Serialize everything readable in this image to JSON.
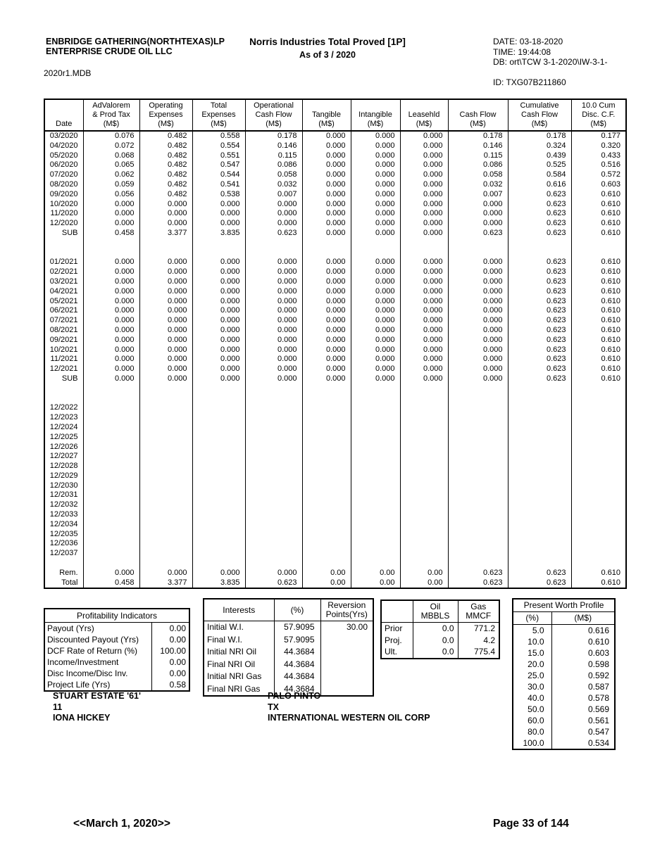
{
  "header": {
    "company_lines": [
      "ENBRIDGE GATHERING(NORTHTEXAS)LP",
      "ENTERPRISE CRUDE OIL LLC"
    ],
    "db_file": "2020r1.MDB",
    "title": "Norris Industries Total Proved [1P]",
    "subtitle": "As of 3 / 2020",
    "date": "DATE: 03-18-2020",
    "time": "TIME: 19:44:08",
    "db": "DB: ort\\TCW 3-1-2020\\IW-3-1-",
    "id": "ID: TXG07B211860"
  },
  "cashflow_table": {
    "columns": [
      [
        "Date"
      ],
      [
        "AdValorem",
        "& Prod Tax",
        "(M$)"
      ],
      [
        "Operating",
        "Expenses",
        "(M$)"
      ],
      [
        "Total",
        "Expenses",
        "(M$)"
      ],
      [
        "Operational",
        "Cash Flow",
        "(M$)"
      ],
      [
        "Tangible",
        "(M$)"
      ],
      [
        "Intangible",
        "(M$)"
      ],
      [
        "Leasehld",
        "(M$)"
      ],
      [
        "Cash Flow",
        "(M$)"
      ],
      [
        "Cumulative",
        "Cash Flow",
        "(M$)"
      ],
      [
        "10.0 Cum",
        "Disc. C.F.",
        "(M$)"
      ]
    ],
    "body": [
      [
        "03/2020",
        "0.076",
        "0.482",
        "0.558",
        "0.178",
        "0.000",
        "0.000",
        "0.000",
        "0.178",
        "0.178",
        "0.177"
      ],
      [
        "04/2020",
        "0.072",
        "0.482",
        "0.554",
        "0.146",
        "0.000",
        "0.000",
        "0.000",
        "0.146",
        "0.324",
        "0.320"
      ],
      [
        "05/2020",
        "0.068",
        "0.482",
        "0.551",
        "0.115",
        "0.000",
        "0.000",
        "0.000",
        "0.115",
        "0.439",
        "0.433"
      ],
      [
        "06/2020",
        "0.065",
        "0.482",
        "0.547",
        "0.086",
        "0.000",
        "0.000",
        "0.000",
        "0.086",
        "0.525",
        "0.516"
      ],
      [
        "07/2020",
        "0.062",
        "0.482",
        "0.544",
        "0.058",
        "0.000",
        "0.000",
        "0.000",
        "0.058",
        "0.584",
        "0.572"
      ],
      [
        "08/2020",
        "0.059",
        "0.482",
        "0.541",
        "0.032",
        "0.000",
        "0.000",
        "0.000",
        "0.032",
        "0.616",
        "0.603"
      ],
      [
        "09/2020",
        "0.056",
        "0.482",
        "0.538",
        "0.007",
        "0.000",
        "0.000",
        "0.000",
        "0.007",
        "0.623",
        "0.610"
      ],
      [
        "10/2020",
        "0.000",
        "0.000",
        "0.000",
        "0.000",
        "0.000",
        "0.000",
        "0.000",
        "0.000",
        "0.623",
        "0.610"
      ],
      [
        "11/2020",
        "0.000",
        "0.000",
        "0.000",
        "0.000",
        "0.000",
        "0.000",
        "0.000",
        "0.000",
        "0.623",
        "0.610"
      ],
      [
        "12/2020",
        "0.000",
        "0.000",
        "0.000",
        "0.000",
        "0.000",
        "0.000",
        "0.000",
        "0.000",
        "0.623",
        "0.610"
      ],
      [
        "SUB",
        "0.458",
        "3.377",
        "3.835",
        "0.623",
        "0.000",
        "0.000",
        "0.000",
        "0.623",
        "0.623",
        "0.610"
      ],
      [],
      [],
      [
        "01/2021",
        "0.000",
        "0.000",
        "0.000",
        "0.000",
        "0.000",
        "0.000",
        "0.000",
        "0.000",
        "0.623",
        "0.610"
      ],
      [
        "02/2021",
        "0.000",
        "0.000",
        "0.000",
        "0.000",
        "0.000",
        "0.000",
        "0.000",
        "0.000",
        "0.623",
        "0.610"
      ],
      [
        "03/2021",
        "0.000",
        "0.000",
        "0.000",
        "0.000",
        "0.000",
        "0.000",
        "0.000",
        "0.000",
        "0.623",
        "0.610"
      ],
      [
        "04/2021",
        "0.000",
        "0.000",
        "0.000",
        "0.000",
        "0.000",
        "0.000",
        "0.000",
        "0.000",
        "0.623",
        "0.610"
      ],
      [
        "05/2021",
        "0.000",
        "0.000",
        "0.000",
        "0.000",
        "0.000",
        "0.000",
        "0.000",
        "0.000",
        "0.623",
        "0.610"
      ],
      [
        "06/2021",
        "0.000",
        "0.000",
        "0.000",
        "0.000",
        "0.000",
        "0.000",
        "0.000",
        "0.000",
        "0.623",
        "0.610"
      ],
      [
        "07/2021",
        "0.000",
        "0.000",
        "0.000",
        "0.000",
        "0.000",
        "0.000",
        "0.000",
        "0.000",
        "0.623",
        "0.610"
      ],
      [
        "08/2021",
        "0.000",
        "0.000",
        "0.000",
        "0.000",
        "0.000",
        "0.000",
        "0.000",
        "0.000",
        "0.623",
        "0.610"
      ],
      [
        "09/2021",
        "0.000",
        "0.000",
        "0.000",
        "0.000",
        "0.000",
        "0.000",
        "0.000",
        "0.000",
        "0.623",
        "0.610"
      ],
      [
        "10/2021",
        "0.000",
        "0.000",
        "0.000",
        "0.000",
        "0.000",
        "0.000",
        "0.000",
        "0.000",
        "0.623",
        "0.610"
      ],
      [
        "11/2021",
        "0.000",
        "0.000",
        "0.000",
        "0.000",
        "0.000",
        "0.000",
        "0.000",
        "0.000",
        "0.623",
        "0.610"
      ],
      [
        "12/2021",
        "0.000",
        "0.000",
        "0.000",
        "0.000",
        "0.000",
        "0.000",
        "0.000",
        "0.000",
        "0.623",
        "0.610"
      ],
      [
        "SUB",
        "0.000",
        "0.000",
        "0.000",
        "0.000",
        "0.000",
        "0.000",
        "0.000",
        "0.000",
        "0.623",
        "0.610"
      ],
      [],
      [],
      [
        "12/2022"
      ],
      [
        "12/2023"
      ],
      [
        "12/2024"
      ],
      [
        "12/2025"
      ],
      [
        "12/2026"
      ],
      [
        "12/2027"
      ],
      [
        "12/2028"
      ],
      [
        "12/2029"
      ],
      [
        "12/2030"
      ],
      [
        "12/2031"
      ],
      [
        "12/2032"
      ],
      [
        "12/2033"
      ],
      [
        "12/2034"
      ],
      [
        "12/2035"
      ],
      [
        "12/2036"
      ],
      [
        "12/2037"
      ],
      [],
      [
        "Rem.",
        "0.000",
        "0.000",
        "0.000",
        "0.000",
        "0.00",
        "0.00",
        "0.00",
        "0.623",
        "0.623",
        "0.610"
      ],
      [
        "Total",
        "0.458",
        "3.377",
        "3.835",
        "0.623",
        "0.00",
        "0.00",
        "0.00",
        "0.623",
        "0.623",
        "0.610"
      ]
    ]
  },
  "profitability": {
    "title": "Profitability Indicators",
    "rows": [
      [
        "Payout (Yrs)",
        "0.00"
      ],
      [
        "Discounted Payout (Yrs)",
        "0.00"
      ],
      [
        "DCF Rate of Return (%)",
        "100.00"
      ],
      [
        "Income/Investment",
        "0.00"
      ],
      [
        "Disc Income/Disc Inv.",
        "0.00"
      ],
      [
        "Project Life (Yrs)",
        "0.58"
      ]
    ]
  },
  "interests": {
    "headers": [
      "Interests",
      "(%)",
      "Reversion\nPoints(Yrs)"
    ],
    "rows": [
      [
        "Initial W.I.",
        "57.9095",
        "30.00"
      ],
      [
        "Final W.I.",
        "57.9095",
        ""
      ],
      [
        "Initial NRI Oil",
        "44.3684",
        ""
      ],
      [
        "Final NRI Oil",
        "44.3684",
        ""
      ],
      [
        "Initial NRI Gas",
        "44.3684",
        ""
      ],
      [
        "Final NRI Gas",
        "44.3684",
        ""
      ]
    ]
  },
  "reserves": {
    "headers": [
      "",
      "Oil\nMBBLS",
      "Gas\nMMCF"
    ],
    "rows": [
      [
        "Prior",
        "0.0",
        "771.2"
      ],
      [
        "Proj.",
        "0.0",
        "4.2"
      ],
      [
        "Ult.",
        "0.0",
        "775.4"
      ]
    ]
  },
  "present_worth": {
    "title": "Present Worth Profile",
    "headers": [
      "(%)",
      "(M$)"
    ],
    "rows": [
      [
        "5.0",
        "0.616"
      ],
      [
        "10.0",
        "0.610"
      ],
      [
        "15.0",
        "0.603"
      ],
      [
        "20.0",
        "0.598"
      ],
      [
        "25.0",
        "0.592"
      ],
      [
        "30.0",
        "0.587"
      ],
      [
        "40.0",
        "0.578"
      ],
      [
        "50.0",
        "0.569"
      ],
      [
        "60.0",
        "0.561"
      ],
      [
        "80.0",
        "0.547"
      ],
      [
        "100.0",
        "0.534"
      ]
    ]
  },
  "well_info": {
    "left": [
      "STUART ESTATE '61'",
      "11",
      "IONA HICKEY"
    ],
    "right": [
      "PALO PINTO",
      "TX",
      "INTERNATIONAL WESTERN OIL CORP"
    ]
  },
  "footer": {
    "date_stamp": "<<March 1, 2020>>",
    "page": "Page 33 of 144"
  }
}
